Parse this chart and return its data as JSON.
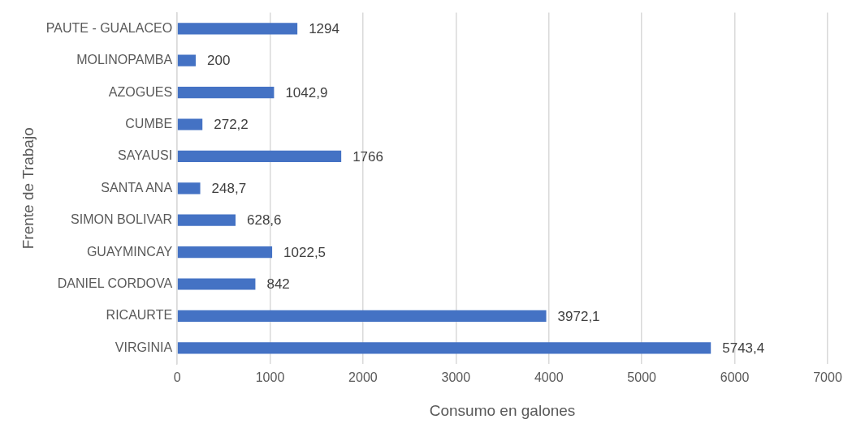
{
  "chart_data": {
    "type": "bar",
    "orientation": "horizontal",
    "xlabel": "Consumo en galones",
    "ylabel": "Frente de Trabajo",
    "categories": [
      "PAUTE - GUALACEO",
      "MOLINOPAMBA",
      "AZOGUES",
      "CUMBE",
      "SAYAUSI",
      "SANTA ANA",
      "SIMON BOLIVAR",
      "GUAYMINCAY",
      "DANIEL CORDOVA",
      "RICAURTE",
      "VIRGINIA"
    ],
    "values": [
      1294,
      200,
      1042.9,
      272.2,
      1766,
      248.7,
      628.6,
      1022.5,
      842,
      3972.1,
      5743.4
    ],
    "value_labels": [
      "1294",
      "200",
      "1042,9",
      "272,2",
      "1766",
      "248,7",
      "628,6",
      "1022,5",
      "842",
      "3972,1",
      "5743,4"
    ],
    "color": "#4472c4",
    "xlim": [
      0,
      7000
    ],
    "xticks": [
      0,
      1000,
      2000,
      3000,
      4000,
      5000,
      6000,
      7000
    ],
    "grid": "x"
  }
}
